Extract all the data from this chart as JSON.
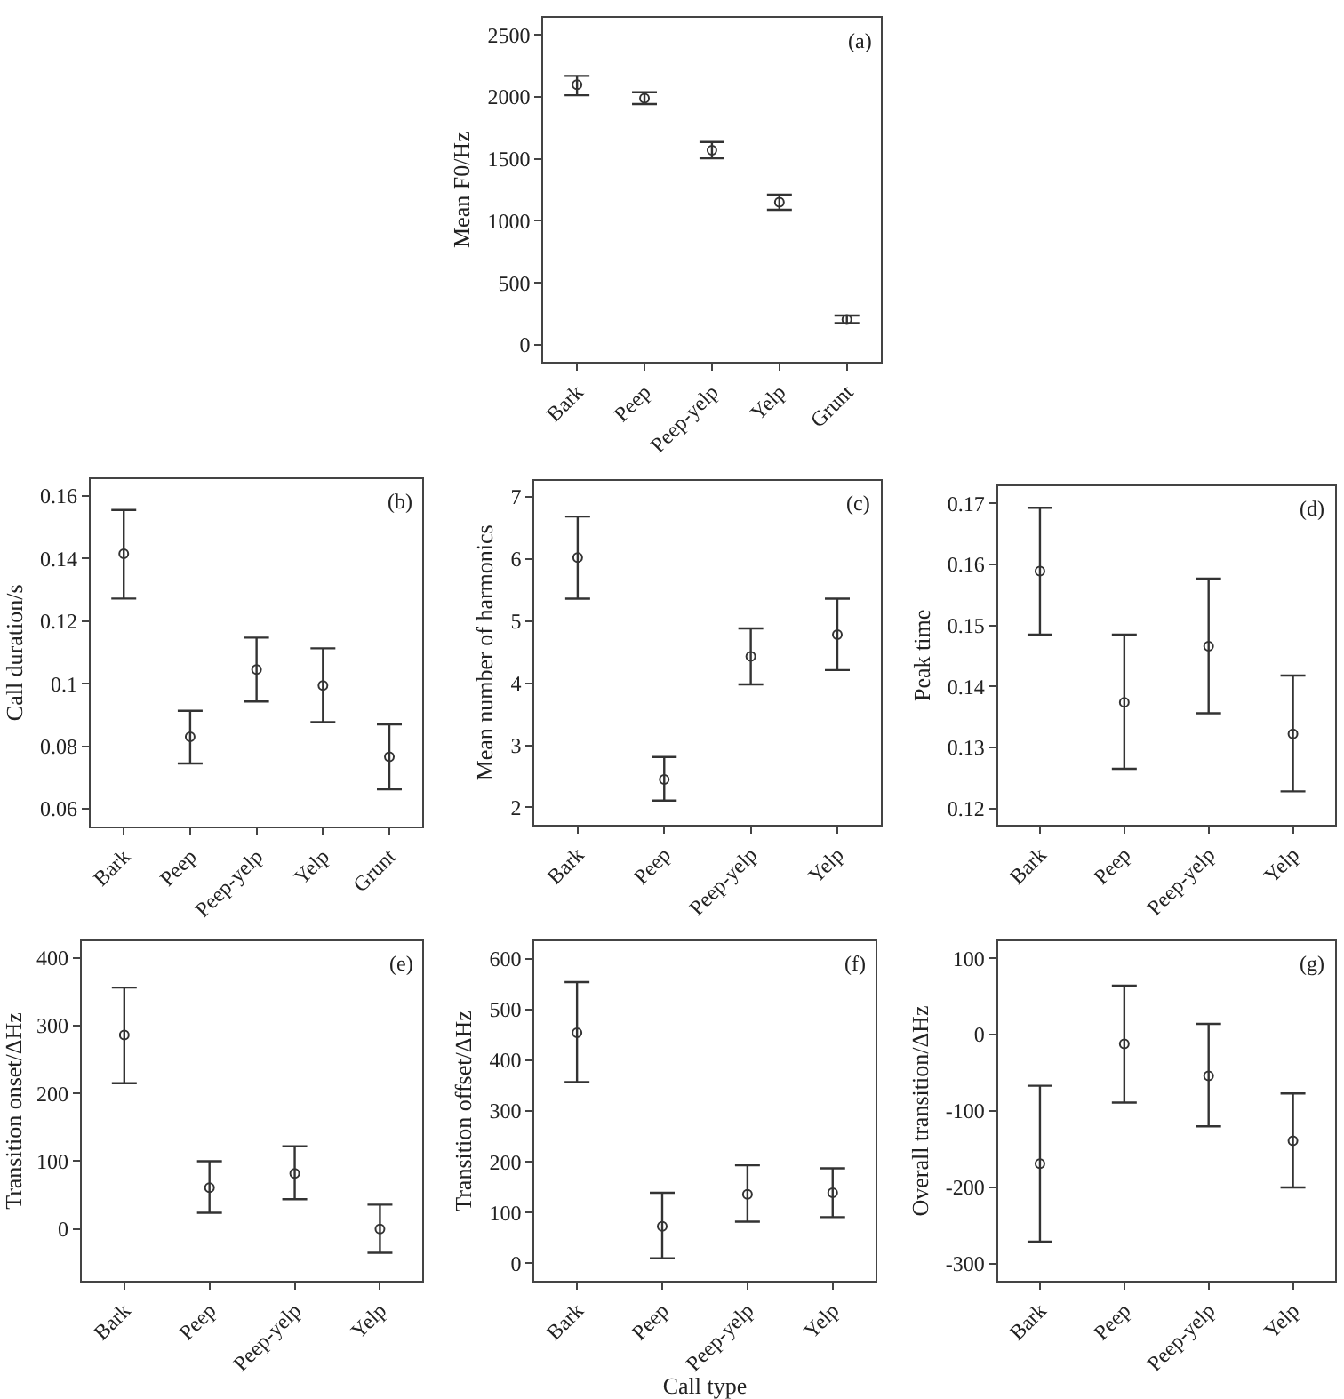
{
  "chart_data": [
    {
      "type": "scatter",
      "categories": [
        "Bark",
        "Peep",
        "Peep-yelp",
        "Yelp",
        "Grunt"
      ],
      "values": [
        2100,
        1990,
        1571,
        1151,
        203
      ],
      "errors": [
        [
          2014,
          2170
        ],
        [
          1943,
          2038
        ],
        [
          1505,
          1637
        ],
        [
          1090,
          1212
        ],
        [
          175,
          236
        ]
      ],
      "ylim": [
        -140,
        2640
      ],
      "yticks": [
        0,
        500,
        1000,
        1500,
        2000,
        2500
      ],
      "ylabel": "Mean F0/Hz",
      "annotations": [
        "(a)"
      ],
      "marker": "circle",
      "color": "#333333"
    },
    {
      "type": "scatter",
      "categories": [
        "Bark",
        "Peep",
        "Peep-yelp",
        "Yelp",
        "Grunt"
      ],
      "values": [
        0.1415,
        0.083,
        0.1045,
        0.0994,
        0.0766
      ],
      "errors": [
        [
          0.1272,
          0.1555
        ],
        [
          0.0745,
          0.0913
        ],
        [
          0.0943,
          0.1147
        ],
        [
          0.0877,
          0.1113
        ],
        [
          0.0662,
          0.087
        ]
      ],
      "ylim": [
        0.0543,
        0.1655
      ],
      "yticks": [
        0.06,
        0.08,
        0.1,
        0.12,
        0.14,
        0.16
      ],
      "ylabel": "Call duration/s",
      "annotations": [
        "(b)"
      ],
      "marker": "circle",
      "color": "#333333"
    },
    {
      "type": "scatter",
      "categories": [
        "Bark",
        "Peep",
        "Peep-yelp",
        "Yelp"
      ],
      "values": [
        6.02,
        2.45,
        4.43,
        4.78
      ],
      "errors": [
        [
          5.36,
          6.68
        ],
        [
          2.11,
          2.81
        ],
        [
          3.98,
          4.88
        ],
        [
          4.21,
          5.36
        ]
      ],
      "ylim": [
        1.72,
        7.26
      ],
      "yticks": [
        2,
        3,
        4,
        5,
        6,
        7
      ],
      "ylabel": "Mean number of harmonics",
      "annotations": [
        "(c)"
      ],
      "marker": "circle",
      "color": "#333333"
    },
    {
      "type": "scatter",
      "categories": [
        "Bark",
        "Peep",
        "Peep-yelp",
        "Yelp"
      ],
      "values": [
        0.1589,
        0.1374,
        0.1466,
        0.1322
      ],
      "errors": [
        [
          0.1485,
          0.1693
        ],
        [
          0.1265,
          0.1485
        ],
        [
          0.1356,
          0.1577
        ],
        [
          0.1228,
          0.1418
        ]
      ],
      "ylim": [
        0.1173,
        0.1729
      ],
      "yticks": [
        0.12,
        0.13,
        0.14,
        0.15,
        0.16,
        0.17
      ],
      "ylabel": "Peak time",
      "annotations": [
        "(d)"
      ],
      "marker": "circle",
      "color": "#333333"
    },
    {
      "type": "scatter",
      "categories": [
        "Bark",
        "Peep",
        "Peep-yelp",
        "Yelp"
      ],
      "values": [
        286,
        61,
        82,
        0
      ],
      "errors": [
        [
          215,
          356
        ],
        [
          24,
          100
        ],
        [
          44,
          122
        ],
        [
          -35,
          36
        ]
      ],
      "ylim": [
        -76,
        424
      ],
      "yticks": [
        0,
        100,
        200,
        300,
        400
      ],
      "ylabel": "Transition onset/ΔHz",
      "annotations": [
        "(e)"
      ],
      "marker": "circle",
      "color": "#333333"
    },
    {
      "type": "scatter",
      "categories": [
        "Bark",
        "Peep",
        "Peep-yelp",
        "Yelp"
      ],
      "values": [
        454,
        73,
        136,
        139
      ],
      "errors": [
        [
          357,
          554
        ],
        [
          10,
          139
        ],
        [
          82,
          193
        ],
        [
          91,
          187
        ]
      ],
      "ylim": [
        -34,
        634
      ],
      "yticks": [
        0,
        100,
        200,
        300,
        400,
        500,
        600
      ],
      "ylabel": "Transition offset/ΔHz",
      "xlabel": "Call type",
      "annotations": [
        "(f)"
      ],
      "marker": "circle",
      "color": "#333333"
    },
    {
      "type": "scatter",
      "categories": [
        "Bark",
        "Peep",
        "Peep-yelp",
        "Yelp"
      ],
      "values": [
        -169,
        -12,
        -54,
        -139
      ],
      "errors": [
        [
          -271,
          -67
        ],
        [
          -89,
          64
        ],
        [
          -120,
          14
        ],
        [
          -200,
          -77
        ]
      ],
      "ylim": [
        -322,
        122
      ],
      "yticks": [
        -300,
        -200,
        -100,
        0,
        100
      ],
      "ylabel": "Overall transition/ΔHz",
      "annotations": [
        "(g)"
      ],
      "marker": "circle",
      "color": "#333333"
    }
  ]
}
